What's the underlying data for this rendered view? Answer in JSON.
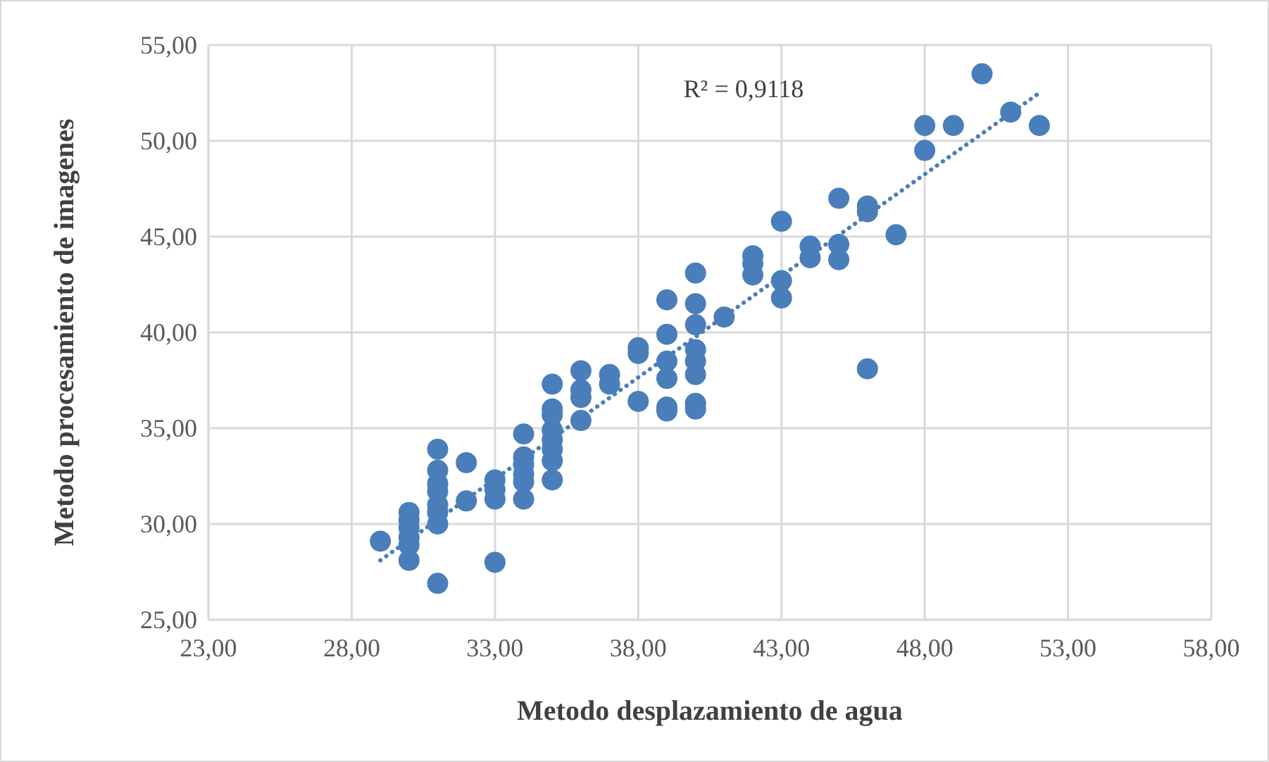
{
  "chart_data": {
    "type": "scatter",
    "xlabel": "Metodo  desplazamiento de agua",
    "ylabel": "Metodo  procesamiento de imagenes",
    "annotations": [
      "R² = 0,9118"
    ],
    "xlim": [
      23,
      58
    ],
    "xticks": [
      {
        "value": 23,
        "label": "23,00"
      },
      {
        "value": 28,
        "label": "28,00"
      },
      {
        "value": 33,
        "label": "33,00"
      },
      {
        "value": 38,
        "label": "38,00"
      },
      {
        "value": 43,
        "label": "43,00"
      },
      {
        "value": 48,
        "label": "48,00"
      },
      {
        "value": 53,
        "label": "53,00"
      },
      {
        "value": 58,
        "label": "58,00"
      }
    ],
    "ylim": [
      25,
      55
    ],
    "yticks": [
      {
        "value": 25,
        "label": "25,00"
      },
      {
        "value": 30,
        "label": "30,00"
      },
      {
        "value": 35,
        "label": "35,00"
      },
      {
        "value": 40,
        "label": "40,00"
      },
      {
        "value": 45,
        "label": "45,00"
      },
      {
        "value": 50,
        "label": "50,00"
      },
      {
        "value": 55,
        "label": "55,00"
      }
    ],
    "grid": true,
    "series": [
      {
        "color": "#4a7ebb",
        "marker": "circle",
        "x": [
          29,
          30,
          30,
          30,
          30,
          30,
          30,
          31,
          31,
          31,
          31,
          31,
          31,
          31,
          31,
          32,
          32,
          33,
          33,
          33,
          33,
          34,
          34,
          34,
          34,
          34,
          34,
          35,
          35,
          35,
          35,
          35,
          35,
          35,
          35,
          36,
          36,
          36,
          36,
          37,
          37,
          38,
          38,
          38,
          39,
          39,
          39,
          39,
          39,
          39,
          40,
          40,
          40,
          40,
          40,
          40,
          40,
          40,
          41,
          42,
          42,
          42,
          43,
          43,
          43,
          44,
          44,
          45,
          45,
          45,
          46,
          46,
          46,
          47,
          48,
          48,
          49,
          50,
          51,
          52
        ],
        "values": [
          29.1,
          30.6,
          30.2,
          29.8,
          29.3,
          28.9,
          28.1,
          33.9,
          32.8,
          32.1,
          31.7,
          31.0,
          30.6,
          30.0,
          26.9,
          33.2,
          31.2,
          32.3,
          31.8,
          31.3,
          28.0,
          34.7,
          33.5,
          33.1,
          32.6,
          32.2,
          31.3,
          37.3,
          36.0,
          35.7,
          34.9,
          34.4,
          33.9,
          33.3,
          32.3,
          38.0,
          37.0,
          36.6,
          35.4,
          37.8,
          37.3,
          39.2,
          38.9,
          36.4,
          41.7,
          39.9,
          38.5,
          37.6,
          36.1,
          35.9,
          43.1,
          41.5,
          40.4,
          39.1,
          38.5,
          37.8,
          36.3,
          36.0,
          40.8,
          44.0,
          43.6,
          43.0,
          45.8,
          42.7,
          41.8,
          44.5,
          43.9,
          47.0,
          44.6,
          43.8,
          46.6,
          46.3,
          38.1,
          45.1,
          50.8,
          49.5,
          50.8,
          53.5,
          51.5,
          50.8
        ]
      },
      {
        "type": "line",
        "color": "#4a7ebb",
        "marker": "none",
        "line_style": "dotted",
        "x": [
          29,
          52
        ],
        "values": [
          28.1,
          52.5
        ]
      }
    ]
  }
}
